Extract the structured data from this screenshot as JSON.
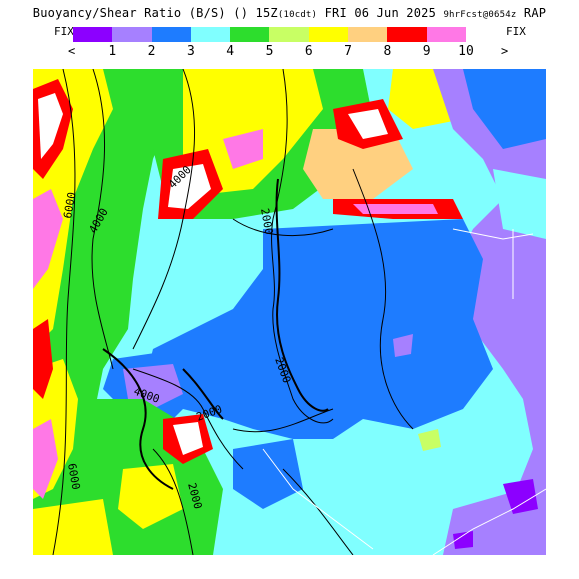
{
  "header": {
    "title_main": "Buoyancy/Shear Ratio (B/S)",
    "title_units": "() 15Z",
    "title_small": "(10cdt)",
    "title_date": "FRI 06 Jun 2025",
    "title_fcst": "9hrFcst@0654z",
    "title_model": "RAP"
  },
  "legend": {
    "fix_left": "FIX",
    "fix_right": "FIX",
    "arrow_left": "<",
    "arrow_right": ">",
    "colors": [
      "#8c00ff",
      "#a680ff",
      "#1e7cff",
      "#80ffff",
      "#2ddd2d",
      "#c8ff64",
      "#ffff00",
      "#ffd080",
      "#ff0000",
      "#ff78e6"
    ],
    "labels": [
      "1",
      "2",
      "3",
      "4",
      "5",
      "6",
      "7",
      "8",
      "9",
      "10"
    ]
  },
  "map": {
    "contour_labels": [
      "4000",
      "6000",
      "4000",
      "2000",
      "2000",
      "4000",
      "2000",
      "6000",
      "2000"
    ]
  }
}
